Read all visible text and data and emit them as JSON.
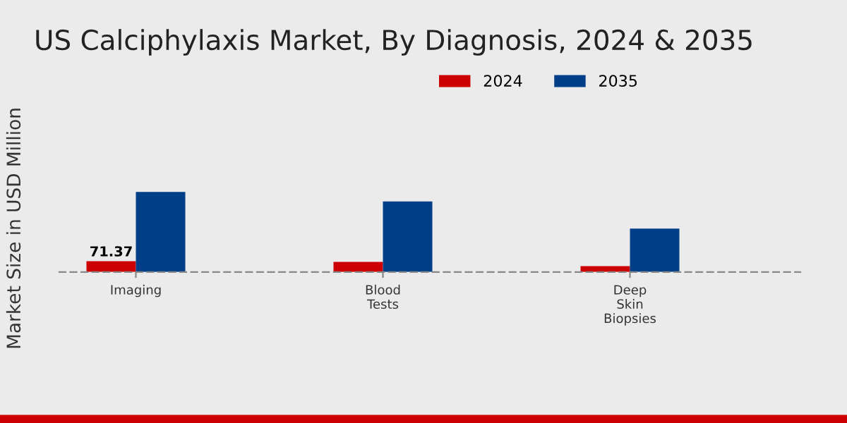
{
  "chart_data": {
    "type": "bar",
    "title": "US Calciphylaxis Market, By Diagnosis, 2024 & 2035",
    "ylabel": "Market Size in USD Million",
    "categories": [
      "Imaging",
      "Blood\nTests",
      "Deep\nSkin\nBiopsies"
    ],
    "series": [
      {
        "name": "2024",
        "color": "#cc0000",
        "values": [
          71.37,
          66,
          38
        ],
        "value_labels": [
          "71.37",
          null,
          null
        ]
      },
      {
        "name": "2035",
        "color": "#003f87",
        "values": [
          526,
          463,
          285
        ]
      }
    ],
    "legend": "top right",
    "grid": false
  }
}
